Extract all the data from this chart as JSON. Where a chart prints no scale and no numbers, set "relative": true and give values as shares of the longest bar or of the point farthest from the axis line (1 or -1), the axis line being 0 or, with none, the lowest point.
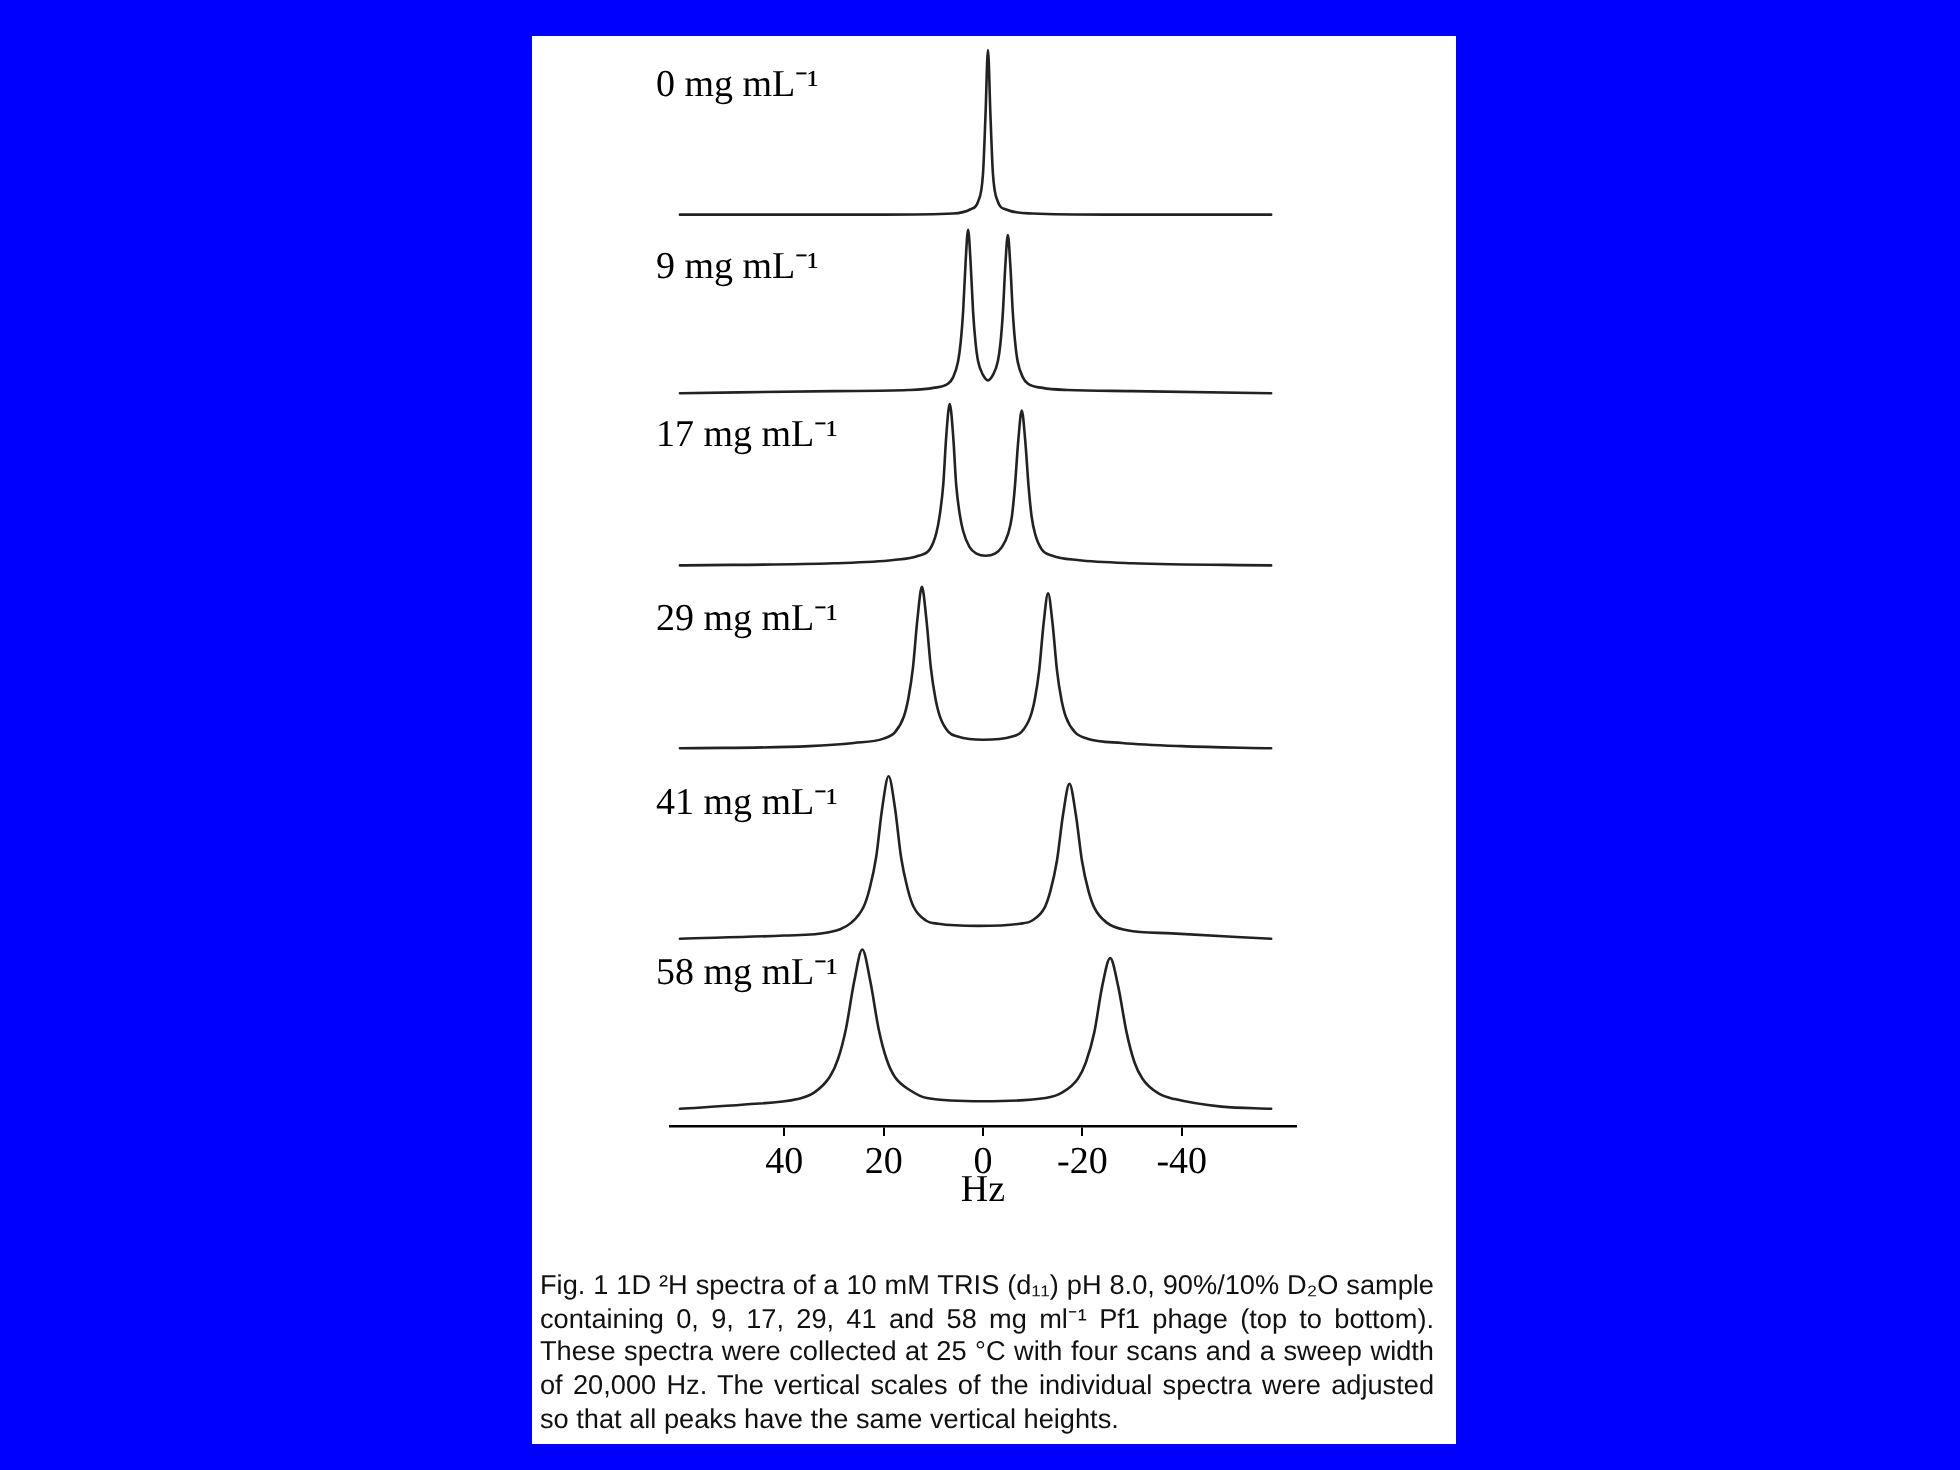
{
  "chart_data": {
    "type": "line",
    "relative": true,
    "xlim": [
      63,
      -63
    ],
    "xticks": [
      40,
      20,
      0,
      -20,
      -40
    ],
    "xlabel": "Hz",
    "tick_labels": "x",
    "series": [
      {
        "color": "#222222",
        "x": [
          61,
          20,
          6,
          2.5,
          1,
          0,
          -0.5,
          -1,
          -1.5,
          -2,
          -3,
          -4.5,
          -10,
          -25,
          -58
        ],
        "values": [
          0.847,
          0.847,
          0.848,
          0.852,
          0.859,
          0.885,
          0.939,
          1,
          0.939,
          0.885,
          0.859,
          0.852,
          0.848,
          0.847,
          0.847
        ]
      },
      {
        "color": "#222222",
        "x": [
          61,
          30,
          15,
          10,
          7,
          6,
          5,
          4.5,
          4,
          3.5,
          3,
          2.5,
          2,
          1.5,
          1,
          0,
          -1,
          -2,
          -3,
          -3.5,
          -4,
          -4.5,
          -5,
          -5.5,
          -6,
          -6.5,
          -7,
          -8,
          -9,
          -12,
          -17,
          -30,
          -58
        ],
        "values": [
          0.681,
          0.683,
          0.684,
          0.686,
          0.69,
          0.696,
          0.711,
          0.728,
          0.757,
          0.803,
          0.833,
          0.803,
          0.757,
          0.728,
          0.711,
          0.698,
          0.693,
          0.698,
          0.711,
          0.727,
          0.756,
          0.8,
          0.828,
          0.8,
          0.756,
          0.727,
          0.71,
          0.696,
          0.69,
          0.686,
          0.684,
          0.683,
          0.681
        ]
      },
      {
        "color": "#222222",
        "x": [
          61,
          30,
          18,
          13,
          10.7,
          9.4,
          8.7,
          8,
          7.4,
          6.7,
          6,
          5.4,
          4.7,
          4,
          2.7,
          1.3,
          -0.5,
          -2.4,
          -3.8,
          -5.1,
          -5.8,
          -6.4,
          -7.1,
          -7.8,
          -8.5,
          -9.2,
          -9.8,
          -10.5,
          -11.8,
          -14,
          -19,
          -30,
          -58
        ],
        "values": [
          0.521,
          0.523,
          0.526,
          0.53,
          0.536,
          0.551,
          0.568,
          0.596,
          0.641,
          0.671,
          0.641,
          0.596,
          0.569,
          0.553,
          0.538,
          0.532,
          0.53,
          0.532,
          0.538,
          0.551,
          0.566,
          0.593,
          0.637,
          0.665,
          0.637,
          0.593,
          0.566,
          0.55,
          0.536,
          0.53,
          0.526,
          0.523,
          0.521
        ]
      },
      {
        "color": "#222222",
        "x": [
          61,
          35,
          26,
          20,
          17.7,
          15.9,
          15,
          14.1,
          13.2,
          12.3,
          11.4,
          10.5,
          9.6,
          8.7,
          6.9,
          5.1,
          0,
          -5.9,
          -7.7,
          -9.5,
          -10.4,
          -11.3,
          -12.2,
          -13.1,
          -14,
          -14.9,
          -15.8,
          -16.7,
          -18.5,
          -21,
          -28,
          -40,
          -58
        ],
        "values": [
          0.351,
          0.353,
          0.356,
          0.36,
          0.366,
          0.381,
          0.398,
          0.426,
          0.471,
          0.501,
          0.471,
          0.426,
          0.398,
          0.381,
          0.366,
          0.362,
          0.359,
          0.362,
          0.366,
          0.38,
          0.396,
          0.423,
          0.467,
          0.495,
          0.467,
          0.423,
          0.396,
          0.38,
          0.366,
          0.36,
          0.356,
          0.353,
          0.351
        ]
      },
      {
        "color": "#222222",
        "x": [
          61,
          40,
          31,
          26.5,
          24,
          22.8,
          21.5,
          20.3,
          19,
          17.7,
          16.5,
          15.2,
          14,
          11.5,
          9,
          1,
          -7.4,
          -9.9,
          -12.4,
          -13.6,
          -14.9,
          -16.1,
          -17.4,
          -18.7,
          -19.9,
          -21.2,
          -22.4,
          -24.9,
          -29,
          -38,
          -58
        ],
        "values": [
          0.174,
          0.177,
          0.18,
          0.189,
          0.204,
          0.221,
          0.25,
          0.295,
          0.325,
          0.295,
          0.25,
          0.221,
          0.204,
          0.191,
          0.188,
          0.186,
          0.188,
          0.191,
          0.203,
          0.219,
          0.247,
          0.289,
          0.318,
          0.289,
          0.247,
          0.219,
          0.203,
          0.189,
          0.182,
          0.179,
          0.174
        ]
      },
      {
        "color": "#222222",
        "x": [
          61,
          48,
          37.3,
          34,
          30.8,
          29.2,
          27.6,
          25.9,
          24.3,
          22.7,
          21,
          19.4,
          17.8,
          14.6,
          11.3,
          0,
          -12.6,
          -15.9,
          -19.1,
          -20.7,
          -22.4,
          -24,
          -25.6,
          -27.2,
          -28.9,
          -30.5,
          -32.1,
          -35.4,
          -38.6,
          -48,
          -58
        ],
        "values": [
          0.016,
          0.02,
          0.025,
          0.031,
          0.046,
          0.062,
          0.09,
          0.135,
          0.164,
          0.135,
          0.09,
          0.062,
          0.046,
          0.033,
          0.026,
          0.023,
          0.026,
          0.031,
          0.044,
          0.059,
          0.087,
          0.13,
          0.156,
          0.13,
          0.087,
          0.059,
          0.044,
          0.03,
          0.025,
          0.018,
          0.016
        ]
      }
    ],
    "annotations": [
      "0 mg mL⁻¹",
      "9 mg mL⁻¹",
      "17 mg mL⁻¹",
      "29 mg mL⁻¹",
      "41 mg mL⁻¹",
      "58 mg mL⁻¹",
      "Fig. 1 1D ²H spectra of a 10 mM TRIS (d₁₁) pH 8.0, 90%/10% D₂O sample containing 0, 9, 17, 29, 41 and 58 mg ml⁻¹ Pf1 phage (top to bottom). These spectra were collected at 25 °C with four scans and a sweep width of 20,000 Hz. The vertical scales of the individual spectra were adjusted so that all peaks have the same vertical heights."
    ]
  }
}
